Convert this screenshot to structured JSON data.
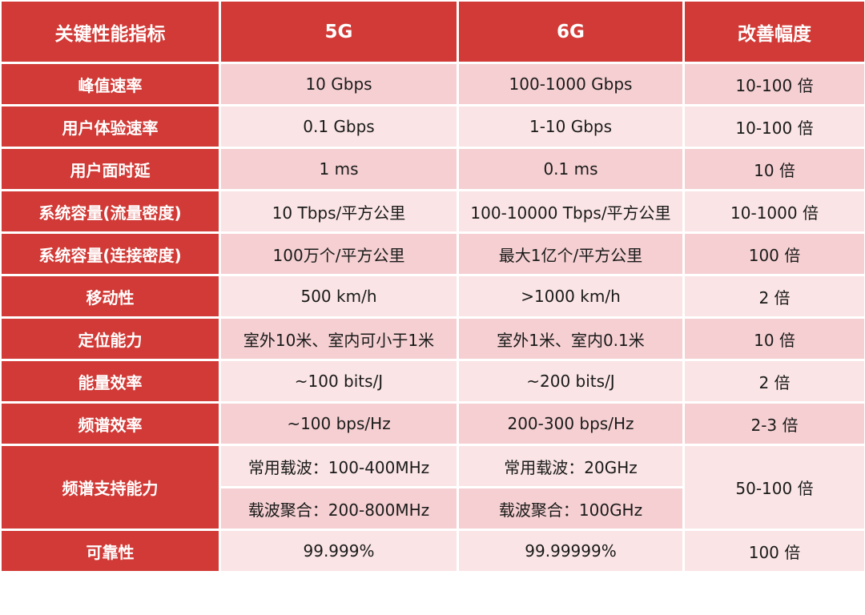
{
  "headers": [
    "关键性能指标",
    "5G",
    "6G",
    "改善幅度"
  ],
  "rows": [
    {
      "metric": "峰值速率",
      "g5": "10 Gbps",
      "g6": "100-1000 Gbps",
      "improve": "10-100 倍"
    },
    {
      "metric": "用户体验速率",
      "g5": "0.1 Gbps",
      "g6": "1-10 Gbps",
      "improve": "10-100 倍"
    },
    {
      "metric": "用户面时延",
      "g5": "1 ms",
      "g6": "0.1 ms",
      "improve": "10 倍"
    },
    {
      "metric": "系统容量(流量密度)",
      "g5": "10 Tbps/平方公里",
      "g6": "100-10000 Tbps/平方公里",
      "improve": "10-1000 倍"
    },
    {
      "metric": "系统容量(连接密度)",
      "g5": "100万个/平方公里",
      "g6": "最大1亿个/平方公里",
      "improve": "100 倍"
    },
    {
      "metric": "移动性",
      "g5": "500 km/h",
      "g6": ">1000 km/h",
      "improve": "2 倍"
    },
    {
      "metric": "定位能力",
      "g5": "室外10米、室内可小于1米",
      "g6": "室外1米、室内0.1米",
      "improve": "10 倍"
    },
    {
      "metric": "能量效率",
      "g5": "~100 bits/J",
      "g6": "~200 bits/J",
      "improve": "2 倍"
    },
    {
      "metric": "频谱效率",
      "g5": "~100 bps/Hz",
      "g6": "200-300 bps/Hz",
      "improve": "2-3 倍"
    }
  ],
  "spectrum": {
    "metric": "频谱支持能力",
    "g5_a": "常用载波：100-400MHz",
    "g6_a": "常用载波：20GHz",
    "g5_b": "载波聚合：200-800MHz",
    "g6_b": "载波聚合：100GHz",
    "improve": "50-100 倍"
  },
  "reliability": {
    "metric": "可靠性",
    "g5": "99.999%",
    "g6": "99.99999%",
    "improve": "100 倍"
  }
}
